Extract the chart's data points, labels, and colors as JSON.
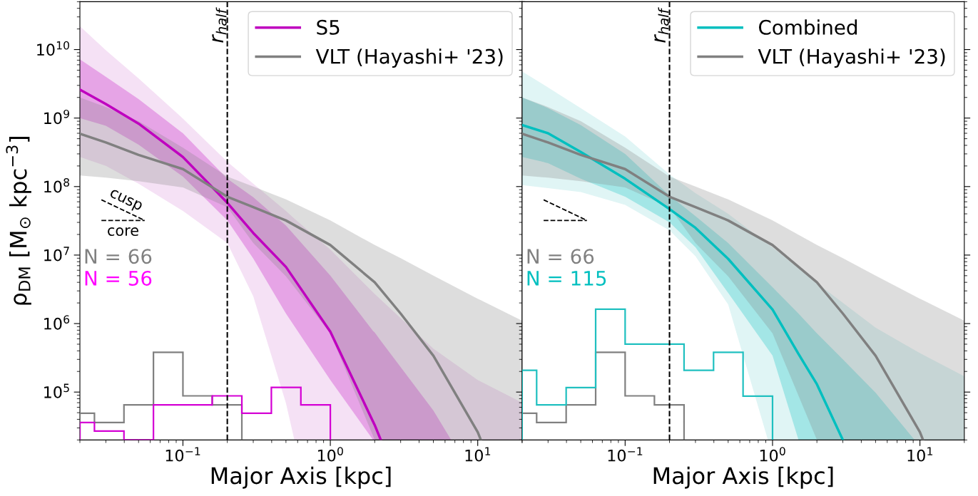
{
  "chart_data": [
    {
      "type": "line",
      "xlabel": "Major Axis [kpc]",
      "ylabel": "ρ$_{DM}$ [M$_{⊙}$ kpc$^{−3}$]",
      "log": "xy",
      "legend": "top right",
      "grid": false,
      "xlim": [
        0.02,
        20
      ],
      "ylim": [
        20000,
        50000000000
      ],
      "xticks": [
        {
          "value": 0.1,
          "label": "10$^{−1}$"
        },
        {
          "value": 1,
          "label": "10$^{0}$"
        },
        {
          "value": 10,
          "label": "10$^{1}$"
        }
      ],
      "yticks": [
        {
          "value": 100000,
          "label": "10$^{5}$"
        },
        {
          "value": 1000000,
          "label": "10$^{6}$"
        },
        {
          "value": 10000000,
          "label": "10$^{7}$"
        },
        {
          "value": 100000000,
          "label": "10$^{8}$"
        },
        {
          "value": 1000000000,
          "label": "10$^{9}$"
        },
        {
          "value": 10000000000,
          "label": "10$^{10}$"
        }
      ],
      "ref_lines": [
        {
          "axis": "x",
          "value": 0.2,
          "label": "r$_{half}$",
          "color": "#000000",
          "line_style": "dashed"
        }
      ],
      "annotations": [
        "cusp",
        "core",
        "N = 66",
        "N = 56"
      ],
      "series": [
        {
          "color": "#f5e1f5",
          "x": [
            0.02,
            0.03,
            0.05,
            0.1,
            0.2,
            0.3,
            0.5,
            0.57,
            1,
            2,
            5,
            10,
            20
          ],
          "values": [
            null,
            null,
            null,
            null,
            null,
            null,
            null,
            null,
            null,
            null,
            null,
            null,
            null
          ],
          "upper": [
            22000000000,
            9800000000,
            3800000000,
            980000000,
            230000000,
            110000000,
            44000000,
            34000000,
            12000000,
            2700000,
            430000,
            150000,
            70000
          ],
          "lower": [
            270000000,
            200000000,
            110000000,
            44000000,
            15000000,
            2500000,
            69000,
            20000,
            20000,
            20000,
            20000,
            20000,
            20000
          ]
        },
        {
          "name": "S5",
          "color": "#bf00bf",
          "x": [
            0.02,
            0.03,
            0.05,
            0.1,
            0.2,
            0.3,
            0.5,
            1,
            1.95,
            2,
            2.2,
            5,
            6.6
          ],
          "values": [
            2600000000,
            1600000000,
            830000000,
            270000000,
            58000000,
            21000000,
            6700000,
            760000,
            37000,
            33000,
            20000,
            null,
            null
          ],
          "upper": [
            7200000000,
            4000000000,
            1900000000,
            600000000,
            130000000,
            70000000,
            27000000,
            5000000,
            780000,
            740000,
            560000,
            54000,
            20000
          ],
          "lower": [
            1000000000,
            770000000,
            410000000,
            140000000,
            32000000,
            8900000,
            1400000,
            150000,
            20000,
            20000,
            20000,
            20000,
            20000
          ]
        },
        {
          "name": "VLT (Hayashi+ '23)",
          "color": "#808080",
          "x": [
            0.02,
            0.03,
            0.05,
            0.1,
            0.2,
            0.3,
            0.5,
            1,
            2,
            3,
            5,
            10,
            10.5,
            20
          ],
          "values": [
            590000000,
            440000000,
            290000000,
            180000000,
            71000000,
            50000000,
            32000000,
            14000000,
            4000000,
            1400000,
            340000,
            26000,
            20000,
            null
          ],
          "upper": [
            2000000000,
            1450000000,
            900000000,
            370000000,
            140000000,
            100000000,
            65000000,
            32000000,
            14000000,
            9000000,
            5000000,
            2300000,
            2200000,
            1100000
          ],
          "lower": [
            145000000,
            135000000,
            120000000,
            97000000,
            50000000,
            15000000,
            4900000,
            720000,
            20000,
            20000,
            20000,
            20000,
            20000,
            20000
          ]
        },
        {
          "type": "histogram",
          "color": "#808080",
          "bins": [
            0.02,
            0.0251,
            0.0398,
            0.0631,
            0.1,
            0.158,
            0.251
          ],
          "values": [
            49000,
            36000,
            65000,
            380000,
            88000,
            65000
          ]
        },
        {
          "type": "histogram",
          "color": "#d400d4",
          "bins": [
            0.02,
            0.0251,
            0.0398,
            0.0631,
            0.1,
            0.158,
            0.251,
            0.398,
            0.631,
            1.0
          ],
          "values": [
            36000,
            27000,
            20000,
            65000,
            65000,
            88000,
            49000,
            117000,
            65000
          ]
        },
        {
          "color": "#000000",
          "line_style": "dashed",
          "x": [
            0.028,
            0.055
          ],
          "values": [
            64000000,
            32000000
          ]
        },
        {
          "color": "#000000",
          "line_style": "dashed",
          "x": [
            0.028,
            0.055
          ],
          "values": [
            32000000,
            32000000
          ]
        }
      ]
    },
    {
      "type": "line",
      "xlabel": "Major Axis [kpc]",
      "log": "xy",
      "legend": "top right",
      "grid": false,
      "tick_labels": "x",
      "xlim": [
        0.02,
        20
      ],
      "ylim": [
        20000,
        50000000000
      ],
      "xticks": [
        {
          "value": 0.1,
          "label": "10$^{−1}$"
        },
        {
          "value": 1,
          "label": "10$^{0}$"
        },
        {
          "value": 10,
          "label": "10$^{1}$"
        }
      ],
      "yticks": [
        {
          "value": 100000,
          "label": null
        },
        {
          "value": 1000000,
          "label": null
        },
        {
          "value": 10000000,
          "label": null
        },
        {
          "value": 100000000,
          "label": null
        },
        {
          "value": 1000000000,
          "label": null
        },
        {
          "value": 10000000000,
          "label": null
        }
      ],
      "ref_lines": [
        {
          "axis": "x",
          "value": 0.2,
          "label": "r$_{half}$",
          "color": "#000000",
          "line_style": "dashed"
        }
      ],
      "annotations": [
        "N = 66",
        "N = 115"
      ],
      "series": [
        {
          "color": "#e0f5f5",
          "x": [
            0.02,
            0.03,
            0.05,
            0.1,
            0.2,
            0.3,
            0.5,
            0.93,
            1,
            2,
            5,
            10,
            20
          ],
          "values": [
            null,
            null,
            null,
            null,
            null,
            null,
            null,
            null,
            null,
            null,
            null,
            null,
            null
          ],
          "upper": [
            4800000000,
            2800000000,
            1400000000,
            540000000,
            150000000,
            80000000,
            40000000,
            14500000,
            13000000,
            3900000,
            870000,
            370000,
            170000
          ],
          "lower": [
            105000000,
            95000000,
            83000000,
            54000000,
            23000000,
            9600000,
            1900000,
            20000,
            20000,
            20000,
            20000,
            20000,
            20000
          ]
        },
        {
          "name": "Combined",
          "color": "#00bfbf",
          "x": [
            0.02,
            0.03,
            0.05,
            0.1,
            0.2,
            0.3,
            0.5,
            1,
            1.5,
            2,
            3,
            5,
            9.2
          ],
          "values": [
            790000000,
            600000000,
            320000000,
            130000000,
            47000000,
            25000000,
            8800000,
            1600000,
            360000,
            130000,
            20000,
            null,
            null
          ],
          "upper": [
            2000000000,
            1400000000,
            790000000,
            300000000,
            74000000,
            37000000,
            15000000,
            3400000,
            1400000,
            720000,
            300000,
            98000,
            20000
          ],
          "lower": [
            270000000,
            220000000,
            130000000,
            71000000,
            30000000,
            13000000,
            2800000,
            340000,
            20000,
            20000,
            20000,
            20000,
            20000
          ]
        },
        {
          "name": "VLT (Hayashi+ '23)",
          "color": "#808080",
          "x": [
            0.02,
            0.03,
            0.05,
            0.1,
            0.2,
            0.3,
            0.5,
            1,
            2,
            3,
            5,
            10,
            10.5,
            20
          ],
          "values": [
            590000000,
            440000000,
            290000000,
            180000000,
            71000000,
            50000000,
            32000000,
            14000000,
            4000000,
            1400000,
            340000,
            26000,
            20000,
            null
          ],
          "upper": [
            2000000000,
            1450000000,
            900000000,
            370000000,
            140000000,
            100000000,
            65000000,
            32000000,
            14000000,
            9000000,
            5000000,
            2300000,
            2200000,
            1100000
          ],
          "lower": [
            145000000,
            135000000,
            120000000,
            97000000,
            50000000,
            15000000,
            4900000,
            720000,
            20000,
            20000,
            20000,
            20000,
            20000,
            20000
          ]
        },
        {
          "type": "histogram",
          "color": "#808080",
          "bins": [
            0.02,
            0.0251,
            0.0398,
            0.0631,
            0.1,
            0.158,
            0.251
          ],
          "values": [
            49000,
            36000,
            65000,
            380000,
            88000,
            65000
          ]
        },
        {
          "type": "histogram",
          "color": "#20c0c0",
          "bins": [
            0.02,
            0.0251,
            0.0398,
            0.0631,
            0.1,
            0.158,
            0.251,
            0.398,
            0.631,
            1.0
          ],
          "values": [
            208000,
            65000,
            116000,
            1620000,
            500000,
            500000,
            208000,
            380000,
            87000
          ]
        },
        {
          "color": "#000000",
          "line_style": "dashed",
          "x": [
            0.028,
            0.055
          ],
          "values": [
            64000000,
            32000000
          ]
        },
        {
          "color": "#000000",
          "line_style": "dashed",
          "x": [
            0.028,
            0.055
          ],
          "values": [
            32000000,
            32000000
          ]
        }
      ]
    }
  ]
}
